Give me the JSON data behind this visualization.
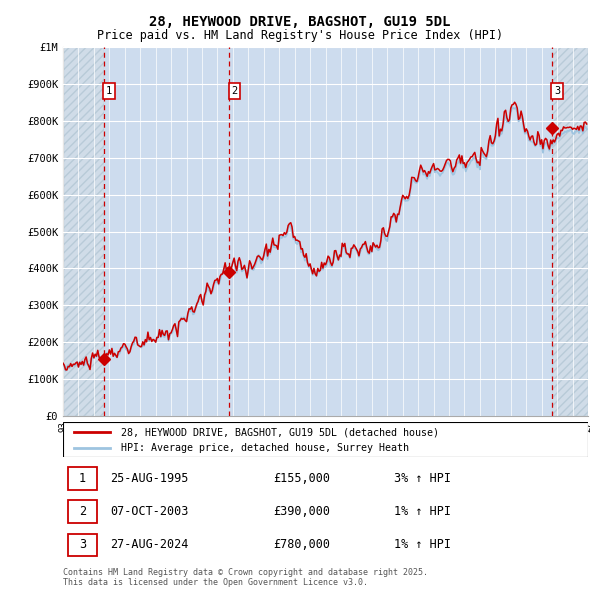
{
  "title_line1": "28, HEYWOOD DRIVE, BAGSHOT, GU19 5DL",
  "title_line2": "Price paid vs. HM Land Registry's House Price Index (HPI)",
  "ylim": [
    0,
    1000000
  ],
  "yticks": [
    0,
    100000,
    200000,
    300000,
    400000,
    500000,
    600000,
    700000,
    800000,
    900000,
    1000000
  ],
  "ytick_labels": [
    "£0",
    "£100K",
    "£200K",
    "£300K",
    "£400K",
    "£500K",
    "£600K",
    "£700K",
    "£800K",
    "£900K",
    "£1M"
  ],
  "hpi_color": "#9ec4e0",
  "price_color": "#cc0000",
  "bg_main_color": "#e8f0f8",
  "bg_owned_color": "#cddcee",
  "bg_hatch_color": "#d0dce8",
  "grid_color": "#ffffff",
  "sale1_date": 1995.64,
  "sale1_price": 155000,
  "sale2_date": 2003.77,
  "sale2_price": 390000,
  "sale3_date": 2024.65,
  "sale3_price": 780000,
  "legend_line1": "28, HEYWOOD DRIVE, BAGSHOT, GU19 5DL (detached house)",
  "legend_line2": "HPI: Average price, detached house, Surrey Heath",
  "table_rows": [
    [
      "1",
      "25-AUG-1995",
      "£155,000",
      "3% ↑ HPI"
    ],
    [
      "2",
      "07-OCT-2003",
      "£390,000",
      "1% ↑ HPI"
    ],
    [
      "3",
      "27-AUG-2024",
      "£780,000",
      "1% ↑ HPI"
    ]
  ],
  "footnote": "Contains HM Land Registry data © Crown copyright and database right 2025.\nThis data is licensed under the Open Government Licence v3.0.",
  "xmin": 1993.0,
  "xmax": 2027.0
}
